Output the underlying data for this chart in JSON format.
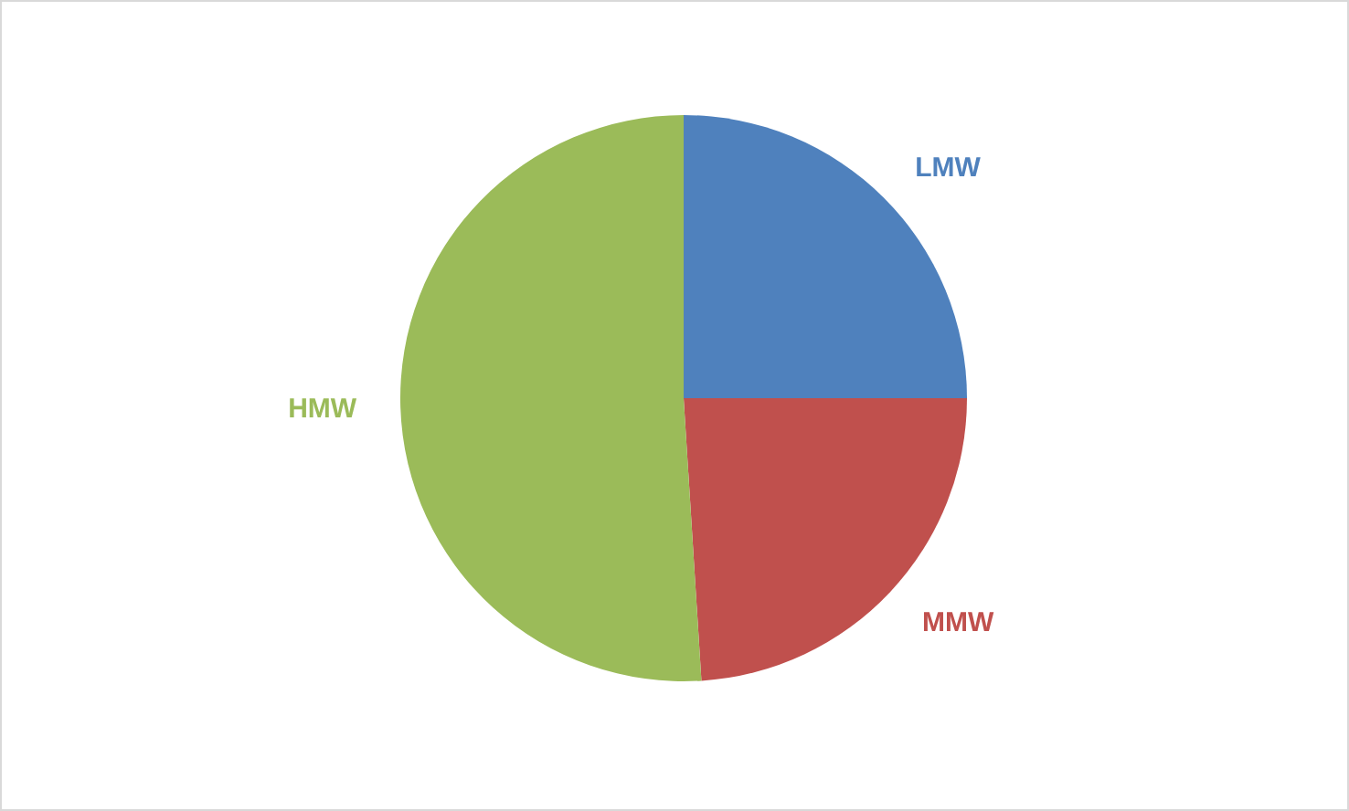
{
  "chart_data": {
    "type": "pie",
    "categories": [
      "LMW",
      "MMW",
      "HMW"
    ],
    "values": [
      25,
      24,
      51
    ],
    "colors": [
      "#4f81bd",
      "#c0504d",
      "#9bbb59"
    ]
  }
}
